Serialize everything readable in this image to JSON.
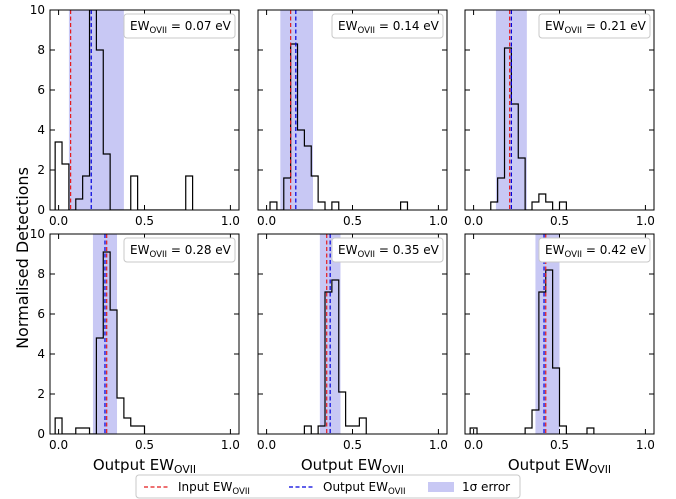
{
  "chart_data": {
    "type": "histogram-grid",
    "ylabel": "Normalised Detections",
    "xlabel": {
      "main": "Output EW",
      "sub": "OVII"
    },
    "xlim": [
      -0.05,
      1.05
    ],
    "ylim": [
      0,
      10
    ],
    "xticks": [
      "0.0",
      "0.5",
      "1.0"
    ],
    "xtick_values": [
      0.0,
      0.5,
      1.0
    ],
    "yticks": [
      "0",
      "2",
      "4",
      "6",
      "8",
      "10"
    ],
    "ytick_values": [
      0,
      2,
      4,
      6,
      8,
      10
    ],
    "bin_width": 0.04,
    "colors": {
      "input": "#e41a1c",
      "output": "#0000dd",
      "band": "#c8c8f4",
      "hist": "#000000"
    },
    "legend": {
      "position": "bottom",
      "items": [
        {
          "key": "input",
          "main": "Input EW",
          "sub": "OVII"
        },
        {
          "key": "output",
          "main": "Output EW",
          "sub": "OVII"
        },
        {
          "key": "band",
          "main": "1σ error",
          "sub": ""
        }
      ]
    },
    "panels": [
      {
        "annotation": {
          "pre": "EW",
          "sub": "OVII",
          "post": " = 0.07 eV"
        },
        "input": 0.07,
        "output": 0.19,
        "band": [
          0.06,
          0.38
        ],
        "bins": [
          [
            -0.02,
            3.4
          ],
          [
            0.02,
            2.3
          ],
          [
            0.06,
            0.0
          ],
          [
            0.1,
            0.55
          ],
          [
            0.14,
            1.7
          ],
          [
            0.18,
            10.0
          ],
          [
            0.22,
            8.0
          ],
          [
            0.26,
            2.8
          ],
          [
            0.3,
            0.0
          ],
          [
            0.34,
            0.0
          ],
          [
            0.38,
            0.0
          ],
          [
            0.42,
            1.7
          ],
          [
            0.46,
            0.0
          ],
          [
            0.5,
            0.0
          ],
          [
            0.54,
            0.0
          ],
          [
            0.58,
            0.0
          ],
          [
            0.62,
            0.0
          ],
          [
            0.66,
            0.0
          ],
          [
            0.7,
            0.0
          ],
          [
            0.74,
            1.7
          ]
        ]
      },
      {
        "annotation": {
          "pre": "EW",
          "sub": "OVII",
          "post": " = 0.14 eV"
        },
        "input": 0.14,
        "output": 0.17,
        "band": [
          0.08,
          0.27
        ],
        "bins": [
          [
            0.02,
            0.4
          ],
          [
            0.06,
            0.0
          ],
          [
            0.1,
            1.6
          ],
          [
            0.14,
            8.3
          ],
          [
            0.18,
            4.0
          ],
          [
            0.22,
            3.2
          ],
          [
            0.26,
            1.7
          ],
          [
            0.3,
            0.4
          ],
          [
            0.34,
            0.0
          ],
          [
            0.38,
            0.4
          ],
          [
            0.42,
            0.0
          ],
          [
            0.46,
            0.0
          ],
          [
            0.5,
            0.0
          ],
          [
            0.54,
            0.0
          ],
          [
            0.58,
            0.0
          ],
          [
            0.62,
            0.0
          ],
          [
            0.66,
            0.0
          ],
          [
            0.7,
            0.0
          ],
          [
            0.74,
            0.0
          ],
          [
            0.78,
            0.4
          ]
        ]
      },
      {
        "annotation": {
          "pre": "EW",
          "sub": "OVII",
          "post": " = 0.21 eV"
        },
        "input": 0.21,
        "output": 0.22,
        "band": [
          0.13,
          0.31
        ],
        "bins": [
          [
            0.1,
            0.4
          ],
          [
            0.14,
            1.6
          ],
          [
            0.18,
            8.1
          ],
          [
            0.22,
            5.3
          ],
          [
            0.26,
            2.6
          ],
          [
            0.3,
            0.0
          ],
          [
            0.34,
            0.4
          ],
          [
            0.38,
            0.8
          ],
          [
            0.42,
            0.4
          ],
          [
            0.46,
            0.0
          ],
          [
            0.5,
            0.4
          ]
        ]
      },
      {
        "annotation": {
          "pre": "EW",
          "sub": "OVII",
          "post": " = 0.28 eV"
        },
        "input": 0.28,
        "output": 0.27,
        "band": [
          0.2,
          0.34
        ],
        "bins": [
          [
            -0.02,
            0.8
          ],
          [
            0.02,
            0.0
          ],
          [
            0.06,
            0.0
          ],
          [
            0.1,
            0.3
          ],
          [
            0.14,
            0.3
          ],
          [
            0.18,
            0.0
          ],
          [
            0.22,
            4.8
          ],
          [
            0.26,
            9.1
          ],
          [
            0.3,
            6.2
          ],
          [
            0.34,
            1.8
          ],
          [
            0.38,
            0.8
          ],
          [
            0.42,
            0.4
          ],
          [
            0.46,
            0.4
          ]
        ]
      },
      {
        "annotation": {
          "pre": "EW",
          "sub": "OVII",
          "post": " = 0.35 eV"
        },
        "input": 0.35,
        "output": 0.37,
        "band": [
          0.31,
          0.43
        ],
        "bins": [
          [
            0.22,
            0.4
          ],
          [
            0.26,
            0.0
          ],
          [
            0.3,
            0.4
          ],
          [
            0.34,
            7.1
          ],
          [
            0.38,
            7.7
          ],
          [
            0.42,
            2.1
          ],
          [
            0.46,
            0.4
          ],
          [
            0.5,
            0.4
          ],
          [
            0.54,
            0.8
          ]
        ]
      },
      {
        "annotation": {
          "pre": "EW",
          "sub": "OVII",
          "post": " = 0.42 eV"
        },
        "input": 0.42,
        "output": 0.41,
        "band": [
          0.36,
          0.5
        ],
        "bins": [
          [
            -0.02,
            0.3
          ],
          [
            0.02,
            0.0
          ],
          [
            0.06,
            0.0
          ],
          [
            0.1,
            0.0
          ],
          [
            0.14,
            0.0
          ],
          [
            0.18,
            0.0
          ],
          [
            0.22,
            0.0
          ],
          [
            0.26,
            0.0
          ],
          [
            0.3,
            0.3
          ],
          [
            0.34,
            1.2
          ],
          [
            0.38,
            7.1
          ],
          [
            0.42,
            8.2
          ],
          [
            0.46,
            3.3
          ],
          [
            0.5,
            0.4
          ],
          [
            0.54,
            0.0
          ],
          [
            0.58,
            0.0
          ],
          [
            0.62,
            0.0
          ],
          [
            0.66,
            0.3
          ]
        ]
      }
    ]
  }
}
